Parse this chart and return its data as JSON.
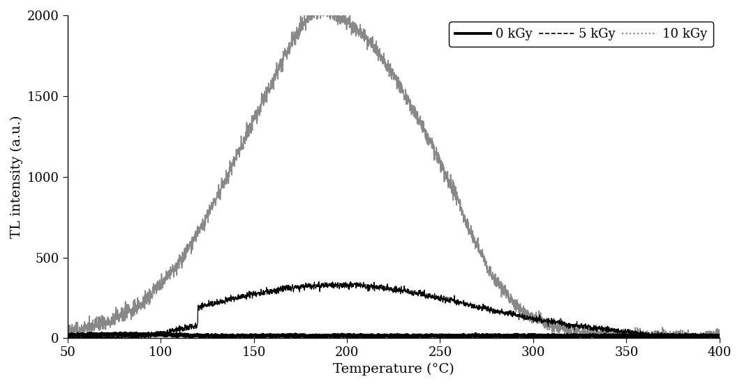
{
  "title": "",
  "xlabel": "Temperature (°C)",
  "ylabel": "TL intensity (a.u.)",
  "xlim": [
    50,
    400
  ],
  "ylim": [
    0,
    2000
  ],
  "yticks": [
    0,
    500,
    1000,
    1500,
    2000
  ],
  "xticks": [
    50,
    100,
    150,
    200,
    250,
    300,
    350,
    400
  ],
  "legend_labels": [
    "0 kGy",
    "5 kGy",
    "10 kGy"
  ],
  "background_color": "white",
  "seed": 42
}
